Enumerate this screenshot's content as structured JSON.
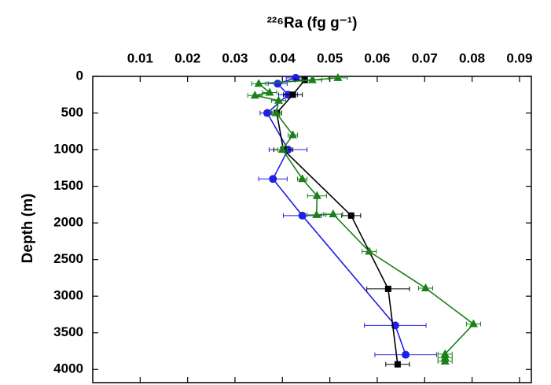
{
  "chart_data": {
    "type": "scatter",
    "x_label": "²²⁶Ra (fg g⁻¹)",
    "y_label": "Depth (m)",
    "xlim": [
      0,
      0.0925
    ],
    "xticks": [
      0.01,
      0.02,
      0.03,
      0.04,
      0.05,
      0.06,
      0.07,
      0.08,
      0.09
    ],
    "ylim": [
      0,
      4180
    ],
    "yticks": [
      0,
      500,
      1000,
      1500,
      2000,
      2500,
      3000,
      3500,
      4000
    ],
    "y_inverted": true,
    "series": [
      {
        "color": "#1f1fe6",
        "marker": "circle",
        "x": [
          0.0428,
          0.039,
          0.0412,
          0.0368,
          0.0412,
          0.038,
          0.0442,
          0.0638,
          0.066
        ],
        "y": [
          20,
          100,
          250,
          500,
          1000,
          1400,
          1900,
          3400,
          3800
        ],
        "xerr": [
          0.002,
          0.002,
          0.002,
          0.0015,
          0.004,
          0.003,
          0.004,
          0.0065,
          0.0065
        ]
      },
      {
        "color": "#000000",
        "marker": "square",
        "x": [
          0.0447,
          0.0422,
          0.0388,
          0.0402,
          0.0545,
          0.0623,
          0.0643
        ],
        "y": [
          50,
          250,
          500,
          1000,
          1900,
          2900,
          3930
        ],
        "xerr": [
          0.002,
          0.002,
          0.001,
          0.002,
          0.002,
          0.0045,
          0.0025
        ]
      },
      {
        "color": "#1a801a",
        "marker": "triangle",
        "x": [
          0.0517,
          0.0463,
          0.035,
          0.0373,
          0.0342,
          0.0392,
          0.0387,
          0.0422,
          0.04,
          0.0442,
          0.0473,
          0.0472,
          0.0507,
          0.0583,
          0.0702,
          0.0803,
          0.0743,
          0.0743,
          0.0743
        ],
        "y": [
          20,
          50,
          100,
          220,
          260,
          330,
          500,
          800,
          1000,
          1400,
          1630,
          1890,
          1880,
          2390,
          2890,
          3380,
          3790,
          3840,
          3890
        ],
        "xerr": [
          0.002,
          0.002,
          0.0015,
          0.0015,
          0.0015,
          0.0015,
          0.001,
          0.001,
          0.001,
          0.001,
          0.002,
          0.002,
          0.002,
          0.0015,
          0.0015,
          0.0015,
          0.0015,
          0.0015,
          0.0015
        ]
      }
    ]
  }
}
